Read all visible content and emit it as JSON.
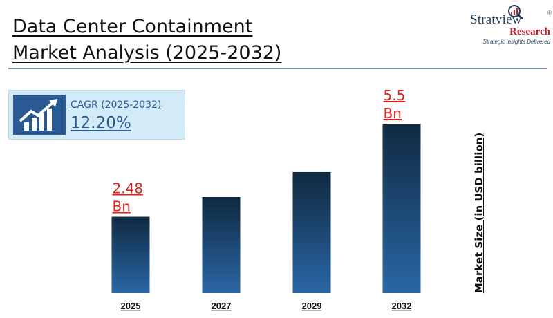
{
  "header": {
    "title_line1": "Data Center Containment",
    "title_line2": "Market Analysis (2025-2032)"
  },
  "logo": {
    "name": "Stratview",
    "registered": "®",
    "sub": "Research",
    "tagline": "Strategic Insights Delivered",
    "icon": "chart-magnifier-icon"
  },
  "cagr": {
    "icon": "growth-chart-icon",
    "label": "CAGR (2025-2032)",
    "value": "12.20%"
  },
  "colors": {
    "bar_top": "#0f2a40",
    "bar_bottom": "#2a66a6",
    "label_red": "#e0211d",
    "accent_blue": "#2a5a93"
  },
  "chart_data": {
    "type": "bar",
    "categories": [
      "2025",
      "2027",
      "2029",
      "2032"
    ],
    "values": [
      2.48,
      3.12,
      3.93,
      5.5
    ],
    "data_labels": [
      {
        "index": 0,
        "line1": "2.48",
        "line2": "Bn"
      },
      {
        "index": 3,
        "line1": "5.5",
        "line2": "Bn"
      }
    ],
    "ylabel": "Market Size (in USD billion)",
    "ylim": [
      0,
      5.5
    ],
    "grid": false,
    "legend": "none"
  }
}
